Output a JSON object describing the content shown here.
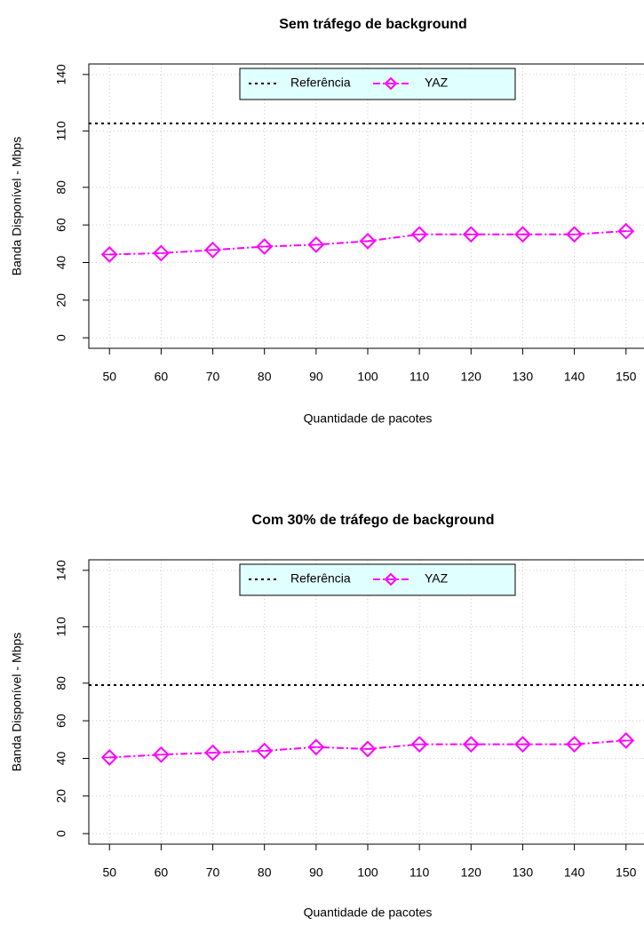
{
  "chart_data": [
    {
      "type": "line",
      "title": "Sem tráfego de background",
      "xlabel": "Quantidade de pacotes",
      "ylabel": "Banda Disponível - Mbps",
      "x": [
        50,
        60,
        70,
        80,
        90,
        100,
        110,
        120,
        130,
        140,
        150
      ],
      "series": [
        {
          "name": "YAZ",
          "color": "#ff00ff",
          "values": [
            44.3,
            45,
            46.7,
            48.5,
            49.5,
            51.4,
            55,
            55,
            55,
            55,
            56.7
          ]
        }
      ],
      "reference_line": {
        "name": "Referência",
        "color": "#000000",
        "value": 114
      },
      "xlim": [
        46,
        154
      ],
      "xticks": [
        50,
        60,
        70,
        80,
        90,
        100,
        110,
        120,
        130,
        140,
        150
      ],
      "ylim": [
        -5.6,
        145.6
      ],
      "yticks": [
        0,
        20,
        40,
        60,
        80,
        110,
        140
      ],
      "grid": true,
      "legend": "top"
    },
    {
      "type": "line",
      "title": "Com 30% de tráfego de background",
      "xlabel": "Quantidade de pacotes",
      "ylabel": "Banda Disponível - Mbps",
      "x": [
        50,
        60,
        70,
        80,
        90,
        100,
        110,
        120,
        130,
        140,
        150
      ],
      "series": [
        {
          "name": "YAZ",
          "color": "#ff00ff",
          "values": [
            40.5,
            42,
            43,
            44,
            46,
            45,
            47.5,
            47.5,
            47.5,
            47.5,
            49.5
          ]
        }
      ],
      "reference_line": {
        "name": "Referência",
        "color": "#000000",
        "value": 79
      },
      "xlim": [
        46,
        154
      ],
      "xticks": [
        50,
        60,
        70,
        80,
        90,
        100,
        110,
        120,
        130,
        140,
        150
      ],
      "ylim": [
        -5.6,
        145.6
      ],
      "yticks": [
        0,
        20,
        40,
        60,
        80,
        110,
        140
      ],
      "grid": true,
      "legend": "top"
    }
  ]
}
